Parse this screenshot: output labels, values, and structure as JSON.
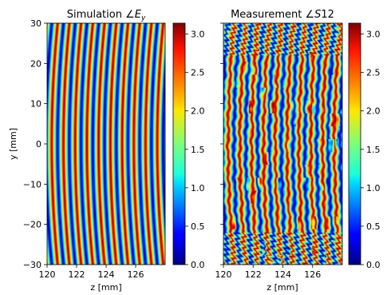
{
  "chart_data": [
    {
      "type": "heatmap",
      "title_main": "Simulation ∠",
      "title_var": "E",
      "title_sub": "y",
      "xlabel": "z [mm]",
      "ylabel": "y [mm]",
      "xlim": [
        120,
        128
      ],
      "ylim": [
        -30,
        30
      ],
      "xticks": [
        120,
        122,
        124,
        126
      ],
      "yticks": [
        -30,
        -20,
        -10,
        0,
        10,
        20,
        30
      ],
      "x_tick_labels": [
        "120",
        "122",
        "124",
        "126"
      ],
      "y_tick_labels": [
        "−30",
        "−20",
        "−10",
        "0",
        "10",
        "20",
        "30"
      ],
      "colormap": "jet",
      "value_range": [
        0,
        3.14159
      ],
      "fringe_period_mm": 0.8,
      "colorbar": {
        "ticks": [
          0.0,
          0.5,
          1.0,
          1.5,
          2.0,
          2.5,
          3.0
        ],
        "tick_labels": [
          "0.0",
          "0.5",
          "1.0",
          "1.5",
          "2.0",
          "2.5",
          "3.0"
        ]
      }
    },
    {
      "type": "heatmap",
      "title_main": "Measurement ∠",
      "title_var": "S",
      "title_sub": "12",
      "xlabel": "z [mm]",
      "ylabel": "",
      "xlim": [
        120,
        128
      ],
      "ylim": [
        -30,
        30
      ],
      "xticks": [
        120,
        122,
        124,
        126
      ],
      "yticks": [
        -30,
        -20,
        -10,
        0,
        10,
        20,
        30
      ],
      "x_tick_labels": [
        "120",
        "122",
        "124",
        "126"
      ],
      "y_tick_labels": [],
      "colormap": "jet",
      "value_range": [
        0,
        3.14159
      ],
      "fringe_period_mm": 0.8,
      "colorbar": {
        "ticks": [
          0.0,
          0.5,
          1.0,
          1.5,
          2.0,
          2.5,
          3.0
        ],
        "tick_labels": [
          "0.0",
          "0.5",
          "1.0",
          "1.5",
          "2.0",
          "2.5",
          "3.0"
        ]
      }
    }
  ]
}
